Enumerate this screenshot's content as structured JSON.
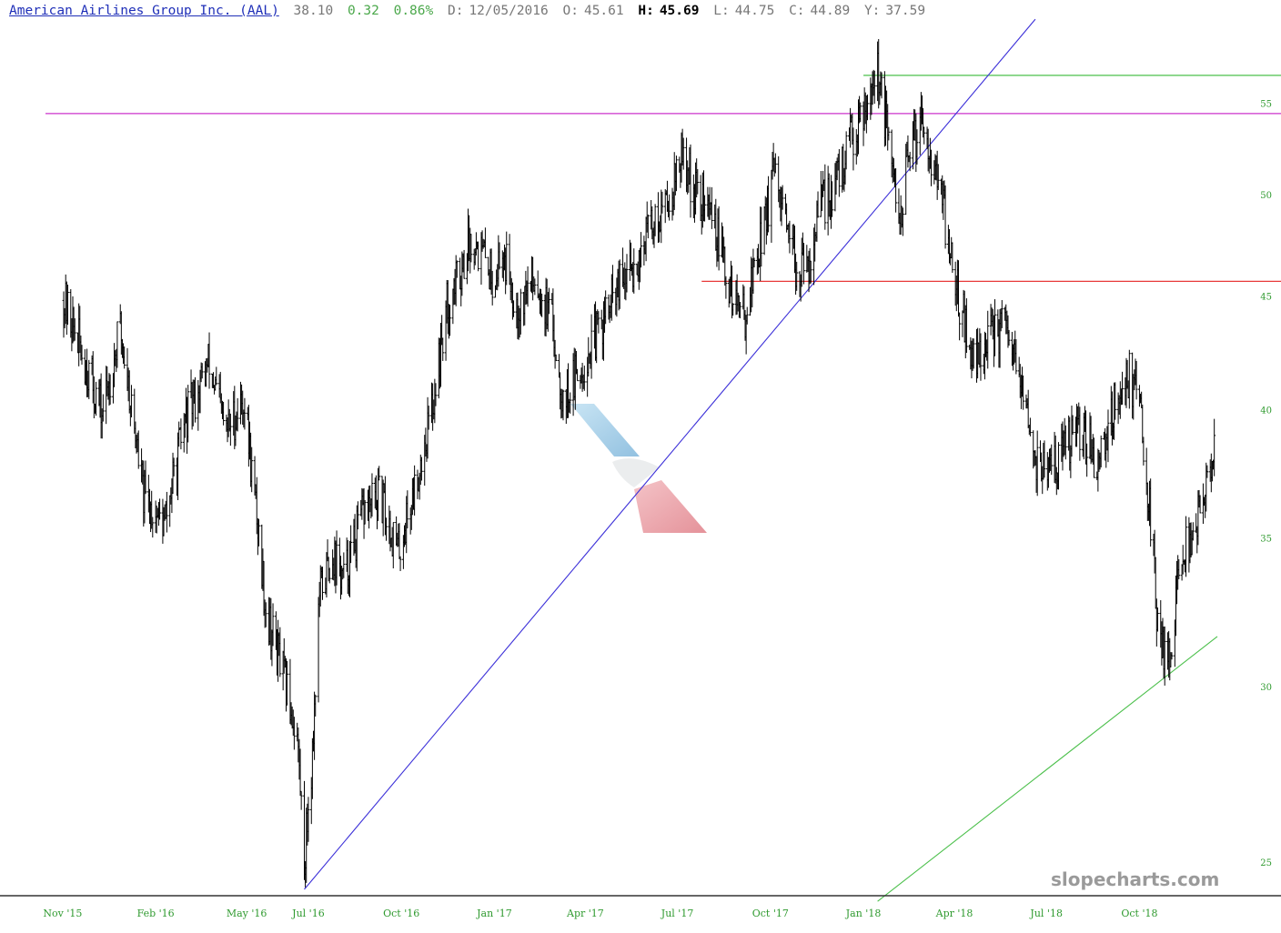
{
  "header": {
    "title": "American Airlines Group Inc. (AAL)",
    "last": "38.10",
    "change": "0.32",
    "change_pct": "0.86%",
    "date_label": "D:",
    "date": "12/05/2016",
    "open_label": "O:",
    "open": "45.61",
    "high_label": "H:",
    "high": "45.69",
    "low_label": "L:",
    "low": "44.75",
    "close_label": "C:",
    "close": "44.89",
    "y_label": "Y:",
    "y": "37.59"
  },
  "watermark": "slopecharts.com",
  "colors": {
    "bars": "#000000",
    "axis_text": "#2f9a2f",
    "title": "#1f2fb8",
    "change": "#4ba84b",
    "trend_blue": "#3b2fd8",
    "trend_green": "#4cc04c",
    "hline_magenta": "#cc33cc",
    "hline_red": "#e83a3a",
    "hline_green": "#4cc04c"
  },
  "chart_data": {
    "type": "ohlc",
    "xlabel": "",
    "ylabel": "",
    "y_scale": "log",
    "ylim": [
      24.3,
      59.5
    ],
    "y_ticks": [
      25,
      30,
      35,
      40,
      45,
      50,
      55
    ],
    "x_ticks": [
      "Nov '15",
      "Feb '16",
      "May '16",
      "Jul '16",
      "Oct '16",
      "Jan '17",
      "Apr '17",
      "Jul '17",
      "Oct '17",
      "Jan '18",
      "Apr '18",
      "Jul '18",
      "Oct '18"
    ],
    "x_range": [
      "2015-11-02",
      "2018-12-17"
    ],
    "x_tick_dates": [
      "2015-11-01",
      "2016-02-01",
      "2016-05-01",
      "2016-07-01",
      "2016-10-01",
      "2017-01-01",
      "2017-04-01",
      "2017-07-01",
      "2017-10-01",
      "2018-01-01",
      "2018-04-01",
      "2018-07-01",
      "2018-10-01"
    ],
    "price_path": [
      [
        "2015-11-02",
        44.8
      ],
      [
        "2015-11-20",
        42.5
      ],
      [
        "2015-12-10",
        39.8
      ],
      [
        "2015-12-28",
        43.5
      ],
      [
        "2016-01-20",
        36.5
      ],
      [
        "2016-02-10",
        35.5
      ],
      [
        "2016-03-01",
        39.5
      ],
      [
        "2016-03-25",
        42.0
      ],
      [
        "2016-04-10",
        39.0
      ],
      [
        "2016-04-28",
        40.5
      ],
      [
        "2016-05-20",
        32.5
      ],
      [
        "2016-06-05",
        30.5
      ],
      [
        "2016-06-20",
        28.5
      ],
      [
        "2016-06-27",
        25.0
      ],
      [
        "2016-07-05",
        28.0
      ],
      [
        "2016-07-12",
        33.0
      ],
      [
        "2016-07-25",
        34.5
      ],
      [
        "2016-08-05",
        33.5
      ],
      [
        "2016-08-25",
        36.0
      ],
      [
        "2016-09-10",
        36.5
      ],
      [
        "2016-09-28",
        34.5
      ],
      [
        "2016-10-15",
        37.0
      ],
      [
        "2016-10-31",
        40.0
      ],
      [
        "2016-11-15",
        44.5
      ],
      [
        "2016-11-30",
        46.5
      ],
      [
        "2016-12-10",
        48.0
      ],
      [
        "2016-12-30",
        46.0
      ],
      [
        "2017-01-10",
        47.0
      ],
      [
        "2017-01-25",
        44.5
      ],
      [
        "2017-02-10",
        46.0
      ],
      [
        "2017-02-28",
        43.5
      ],
      [
        "2017-03-10",
        40.5
      ],
      [
        "2017-03-25",
        41.5
      ],
      [
        "2017-04-10",
        43.0
      ],
      [
        "2017-04-30",
        45.0
      ],
      [
        "2017-05-20",
        46.5
      ],
      [
        "2017-06-05",
        48.5
      ],
      [
        "2017-06-20",
        49.5
      ],
      [
        "2017-07-05",
        52.0
      ],
      [
        "2017-07-20",
        50.0
      ],
      [
        "2017-08-05",
        49.0
      ],
      [
        "2017-08-20",
        45.5
      ],
      [
        "2017-09-05",
        44.0
      ],
      [
        "2017-09-20",
        47.5
      ],
      [
        "2017-10-05",
        51.0
      ],
      [
        "2017-10-20",
        47.0
      ],
      [
        "2017-11-05",
        46.0
      ],
      [
        "2017-11-20",
        49.5
      ],
      [
        "2017-12-05",
        50.5
      ],
      [
        "2017-12-20",
        53.0
      ],
      [
        "2018-01-05",
        55.5
      ],
      [
        "2018-01-15",
        57.0
      ],
      [
        "2018-01-25",
        53.0
      ],
      [
        "2018-02-05",
        48.5
      ],
      [
        "2018-02-15",
        52.0
      ],
      [
        "2018-02-28",
        54.5
      ],
      [
        "2018-03-10",
        52.0
      ],
      [
        "2018-03-20",
        49.5
      ],
      [
        "2018-03-31",
        46.0
      ],
      [
        "2018-04-10",
        44.0
      ],
      [
        "2018-04-20",
        42.0
      ],
      [
        "2018-05-05",
        43.0
      ],
      [
        "2018-05-20",
        43.5
      ],
      [
        "2018-06-05",
        41.0
      ],
      [
        "2018-06-20",
        38.0
      ],
      [
        "2018-07-05",
        37.5
      ],
      [
        "2018-07-20",
        38.5
      ],
      [
        "2018-08-05",
        39.0
      ],
      [
        "2018-08-20",
        38.0
      ],
      [
        "2018-09-05",
        40.0
      ],
      [
        "2018-09-20",
        41.5
      ],
      [
        "2018-10-01",
        40.5
      ],
      [
        "2018-10-10",
        36.5
      ],
      [
        "2018-10-20",
        31.5
      ],
      [
        "2018-10-31",
        31.0
      ],
      [
        "2018-11-10",
        34.0
      ],
      [
        "2018-11-25",
        35.5
      ],
      [
        "2018-12-05",
        36.5
      ],
      [
        "2018-12-14",
        38.1
      ]
    ],
    "trendlines": [
      {
        "color": "blue",
        "from": [
          "2016-06-27",
          24.3
        ],
        "to": [
          "2018-06-20",
          60.0
        ]
      },
      {
        "color": "green",
        "from": [
          "2018-01-15",
          24.0
        ],
        "to": [
          "2018-12-17",
          31.6
        ]
      }
    ],
    "horizontal_lines": [
      {
        "color": "magenta",
        "y": 54.4,
        "from": "2015-10-15",
        "to": "2018-12-17"
      },
      {
        "color": "red",
        "y": 45.7,
        "from": "2017-07-25",
        "to": "2018-12-17"
      },
      {
        "color": "green",
        "y": 56.6,
        "from": "2018-01-01",
        "to": "2018-12-17"
      }
    ]
  }
}
